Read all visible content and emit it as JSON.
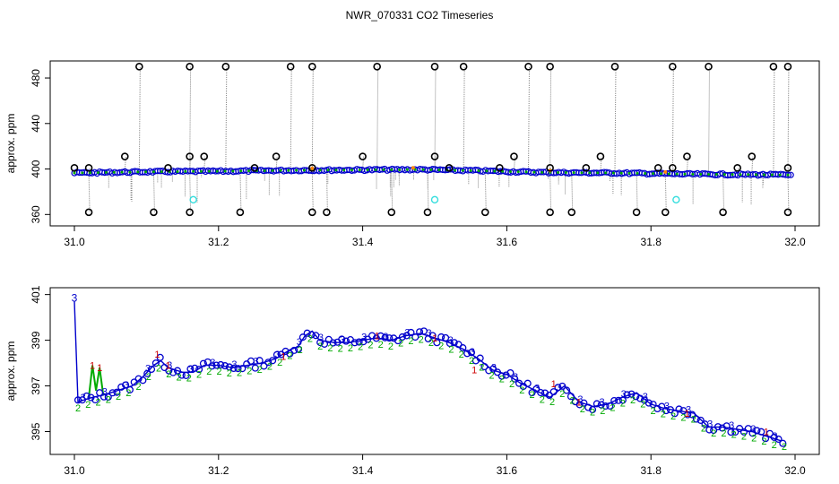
{
  "title": "NWR_070331  CO2 Timeseries",
  "colors": {
    "raw_line": "#888888",
    "outlier_marker": "#000000",
    "main_marker": "#0000cc",
    "fill_green": "#00aa00",
    "cyan_marker": "#33dddd",
    "orange_marker": "#ff8800",
    "label_1": "#cc0000",
    "label_2": "#00aa00",
    "label_3": "#0000cc",
    "axis": "#000000"
  },
  "chart_data": [
    {
      "type": "scatter",
      "panel": "top",
      "ylabel": "approx. ppm",
      "xlim": [
        31.0,
        32.0
      ],
      "ylim": [
        350,
        495
      ],
      "x_ticks": [
        "31.0",
        "31.2",
        "31.4",
        "31.6",
        "31.8",
        "32.0"
      ],
      "y_ticks": [
        "360",
        "400",
        "440",
        "480"
      ],
      "x_tick_values": [
        31.0,
        31.2,
        31.4,
        31.6,
        31.8,
        32.0
      ],
      "y_tick_values": [
        360,
        400,
        440,
        480
      ],
      "baseline": [
        [
          31.0,
          396.5
        ],
        [
          31.1,
          397.5
        ],
        [
          31.2,
          398.0
        ],
        [
          31.3,
          398.8
        ],
        [
          31.4,
          399.2
        ],
        [
          31.48,
          399.5
        ],
        [
          31.55,
          398.6
        ],
        [
          31.65,
          397.0
        ],
        [
          31.75,
          396.5
        ],
        [
          31.85,
          395.5
        ],
        [
          31.95,
          395.0
        ],
        [
          31.99,
          394.8
        ]
      ],
      "outliers_high": [
        31.09,
        31.16,
        31.21,
        31.3,
        31.33,
        31.42,
        31.5,
        31.54,
        31.63,
        31.66,
        31.75,
        31.83,
        31.88,
        31.97,
        31.99
      ],
      "outliers_high_value": 490,
      "outliers_mid": [
        [
          31.02,
          401
        ],
        [
          31.07,
          411
        ],
        [
          31.13,
          401
        ],
        [
          31.16,
          411
        ],
        [
          31.18,
          411
        ],
        [
          31.25,
          401
        ],
        [
          31.28,
          411
        ],
        [
          31.33,
          401
        ],
        [
          31.4,
          411
        ],
        [
          31.5,
          411
        ],
        [
          31.52,
          401
        ],
        [
          31.59,
          401
        ],
        [
          31.61,
          411
        ],
        [
          31.66,
          401
        ],
        [
          31.71,
          401
        ],
        [
          31.73,
          411
        ],
        [
          31.81,
          401
        ],
        [
          31.83,
          401
        ],
        [
          31.85,
          411
        ],
        [
          31.92,
          401
        ],
        [
          31.94,
          411
        ],
        [
          31.99,
          401
        ]
      ],
      "outliers_low": [
        31.02,
        31.11,
        31.16,
        31.23,
        31.33,
        31.35,
        31.44,
        31.49,
        31.57,
        31.66,
        31.69,
        31.78,
        31.82,
        31.9,
        31.99
      ],
      "outliers_low_value": 362,
      "cyan_points": [
        [
          31.165,
          373
        ],
        [
          31.5,
          373
        ],
        [
          31.835,
          373
        ]
      ]
    },
    {
      "type": "line",
      "panel": "bottom",
      "ylabel": "approx. ppm",
      "xlim": [
        31.0,
        32.0
      ],
      "ylim": [
        394,
        401.3
      ],
      "x_ticks": [
        "31.0",
        "31.2",
        "31.4",
        "31.6",
        "31.8",
        "32.0"
      ],
      "y_ticks": [
        "395",
        "397",
        "399",
        "401"
      ],
      "x_tick_values": [
        31.0,
        31.2,
        31.4,
        31.6,
        31.8,
        32.0
      ],
      "y_tick_values": [
        395,
        397,
        399,
        401
      ],
      "series": [
        {
          "name": "3",
          "x": [
            31.0,
            31.005,
            31.015,
            31.025,
            31.04,
            31.06,
            31.08,
            31.095,
            31.11,
            31.12,
            31.13,
            31.15,
            31.165,
            31.18,
            31.2,
            31.22,
            31.24,
            31.26,
            31.28,
            31.3,
            31.31,
            31.32,
            31.33,
            31.34,
            31.36,
            31.38,
            31.4,
            31.42,
            31.44,
            31.46,
            31.48,
            31.5,
            31.52,
            31.54,
            31.56,
            31.58,
            31.6,
            31.62,
            31.64,
            31.66,
            31.68,
            31.7,
            31.72,
            31.74,
            31.76,
            31.78,
            31.8,
            31.82,
            31.84,
            31.86,
            31.88,
            31.9,
            31.92,
            31.94,
            31.96,
            31.98
          ],
          "values": [
            400.7,
            396.3,
            396.4,
            396.5,
            396.6,
            396.8,
            397.0,
            397.4,
            397.9,
            398.1,
            397.8,
            397.6,
            397.6,
            397.9,
            397.9,
            397.8,
            397.9,
            398.0,
            398.2,
            398.6,
            398.7,
            399.2,
            399.4,
            399.0,
            398.9,
            398.9,
            399.0,
            399.1,
            399.0,
            399.2,
            399.3,
            399.1,
            398.9,
            398.6,
            398.2,
            397.7,
            397.5,
            397.1,
            396.8,
            396.5,
            397.0,
            396.3,
            396.1,
            396.2,
            396.5,
            396.7,
            396.2,
            396.0,
            395.9,
            395.8,
            395.2,
            395.2,
            395.1,
            395.0,
            394.8,
            394.6
          ]
        }
      ],
      "green_spike": [
        [
          31.02,
          396.5
        ],
        [
          31.025,
          397.9
        ],
        [
          31.03,
          396.8
        ],
        [
          31.035,
          397.8
        ],
        [
          31.04,
          396.6
        ]
      ],
      "label_1_points": [
        [
          31.025,
          397.9
        ],
        [
          31.035,
          397.8
        ],
        [
          31.115,
          398.4
        ],
        [
          31.13,
          397.9
        ],
        [
          31.29,
          398.3
        ],
        [
          31.42,
          399.2
        ],
        [
          31.5,
          399.1
        ],
        [
          31.555,
          397.7
        ],
        [
          31.665,
          397.1
        ],
        [
          31.7,
          396.3
        ],
        [
          31.85,
          395.8
        ],
        [
          31.96,
          395.0
        ]
      ]
    }
  ]
}
